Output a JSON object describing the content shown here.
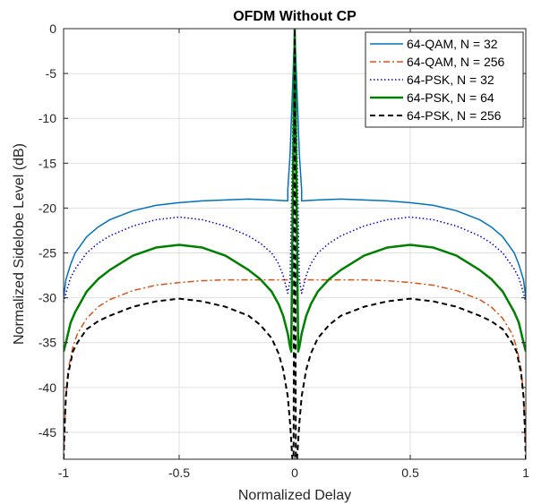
{
  "chart_data": {
    "type": "line",
    "title": "OFDM Without CP",
    "xlabel": "Normalized Delay",
    "ylabel": "Normalized Sidelobe Level (dB)",
    "xlim": [
      -1,
      1
    ],
    "ylim": [
      -48,
      0
    ],
    "xticks": [
      -1,
      -0.5,
      0,
      0.5,
      1
    ],
    "xtick_labels": [
      "-1",
      "-0.5",
      "0",
      "0.5",
      "1"
    ],
    "yticks": [
      0,
      -5,
      -10,
      -15,
      -20,
      -25,
      -30,
      -35,
      -40,
      -45
    ],
    "ytick_labels": [
      "0",
      "-5",
      "-10",
      "-15",
      "-20",
      "-25",
      "-30",
      "-35",
      "-40",
      "-45"
    ],
    "grid": true,
    "legend_position": "top-right",
    "series": [
      {
        "name": "64-QAM, N = 32",
        "color": "#0072BD",
        "style": "solid",
        "x": [
          -1,
          -0.99,
          -0.97,
          -0.95,
          -0.9,
          -0.85,
          -0.8,
          -0.7,
          -0.6,
          -0.5,
          -0.4,
          -0.3,
          -0.2,
          -0.1,
          -0.03,
          -0.03,
          -0.02,
          -0.01,
          0,
          0.01,
          0.02,
          0.03,
          0.03,
          0.1,
          0.2,
          0.3,
          0.4,
          0.5,
          0.6,
          0.7,
          0.8,
          0.85,
          0.9,
          0.95,
          0.97,
          0.99,
          1
        ],
        "y": [
          -30.0,
          -28.0,
          -26.3,
          -25.0,
          -23.2,
          -22.1,
          -21.3,
          -20.3,
          -19.7,
          -19.4,
          -19.2,
          -19.1,
          -19.0,
          -19.1,
          -19.2,
          -18.0,
          -14.0,
          -7.0,
          0,
          -7.0,
          -14.0,
          -18.0,
          -19.2,
          -19.1,
          -19.0,
          -19.1,
          -19.2,
          -19.4,
          -19.7,
          -20.3,
          -21.3,
          -22.1,
          -23.2,
          -25.0,
          -26.3,
          -28.0,
          -30.0
        ]
      },
      {
        "name": "64-QAM, N = 256",
        "color": "#D95319",
        "style": "dashdot",
        "x": [
          -1,
          -0.995,
          -0.99,
          -0.98,
          -0.96,
          -0.94,
          -0.9,
          -0.85,
          -0.8,
          -0.7,
          -0.6,
          -0.5,
          -0.4,
          -0.3,
          -0.2,
          -0.1,
          -0.01,
          0,
          0.01,
          0.1,
          0.2,
          0.3,
          0.4,
          0.5,
          0.6,
          0.7,
          0.8,
          0.85,
          0.9,
          0.94,
          0.96,
          0.98,
          0.99,
          0.995,
          1
        ],
        "y": [
          -48,
          -44.0,
          -41.0,
          -38.0,
          -35.5,
          -34.0,
          -32.3,
          -31.0,
          -30.2,
          -29.2,
          -28.6,
          -28.3,
          -28.1,
          -28.0,
          -28.0,
          -28.0,
          -28.0,
          0,
          -28.0,
          -28.0,
          -28.0,
          -28.0,
          -28.1,
          -28.3,
          -28.6,
          -29.2,
          -30.2,
          -31.0,
          -32.3,
          -34.0,
          -35.5,
          -38.0,
          -41.0,
          -44.0,
          -48
        ]
      },
      {
        "name": "64-PSK, N = 32",
        "color": "#0000CC",
        "style": "dotted",
        "x": [
          -1,
          -0.99,
          -0.97,
          -0.95,
          -0.9,
          -0.85,
          -0.8,
          -0.7,
          -0.6,
          -0.5,
          -0.4,
          -0.3,
          -0.2,
          -0.15,
          -0.1,
          -0.07,
          -0.05,
          -0.03,
          -0.02,
          -0.01,
          0,
          0.01,
          0.02,
          0.03,
          0.05,
          0.07,
          0.1,
          0.15,
          0.2,
          0.3,
          0.4,
          0.5,
          0.6,
          0.7,
          0.8,
          0.85,
          0.9,
          0.95,
          0.97,
          0.99,
          1
        ],
        "y": [
          -30.5,
          -29.5,
          -27.8,
          -26.8,
          -25.0,
          -23.9,
          -23.1,
          -22.0,
          -21.3,
          -21.0,
          -21.3,
          -22.0,
          -23.1,
          -23.9,
          -25.0,
          -26.2,
          -27.5,
          -29.5,
          -28.0,
          -14.0,
          0,
          -14.0,
          -28.0,
          -29.5,
          -27.5,
          -26.2,
          -25.0,
          -23.9,
          -23.1,
          -22.0,
          -21.3,
          -21.0,
          -21.3,
          -22.0,
          -23.1,
          -23.9,
          -25.0,
          -26.8,
          -27.8,
          -29.5,
          -30.5
        ]
      },
      {
        "name": "64-PSK, N = 64",
        "color": "#008000",
        "style": "solid-thick",
        "x": [
          -1,
          -0.99,
          -0.97,
          -0.95,
          -0.9,
          -0.85,
          -0.8,
          -0.7,
          -0.6,
          -0.5,
          -0.4,
          -0.3,
          -0.2,
          -0.15,
          -0.1,
          -0.07,
          -0.05,
          -0.03,
          -0.02,
          -0.015,
          -0.008,
          0,
          0.008,
          0.015,
          0.02,
          0.03,
          0.05,
          0.07,
          0.1,
          0.15,
          0.2,
          0.3,
          0.4,
          0.5,
          0.6,
          0.7,
          0.8,
          0.85,
          0.9,
          0.95,
          0.97,
          0.99,
          1
        ],
        "y": [
          -36.0,
          -35.0,
          -32.8,
          -31.6,
          -29.3,
          -27.9,
          -26.9,
          -25.3,
          -24.4,
          -24.1,
          -24.4,
          -25.3,
          -26.9,
          -27.9,
          -29.3,
          -30.7,
          -32.0,
          -34.0,
          -35.5,
          -36.0,
          -18.0,
          0,
          -18.0,
          -36.0,
          -35.5,
          -34.0,
          -32.0,
          -30.7,
          -29.3,
          -27.9,
          -26.9,
          -25.3,
          -24.4,
          -24.1,
          -24.4,
          -25.3,
          -26.9,
          -27.9,
          -29.3,
          -31.6,
          -32.8,
          -35.0,
          -36.0
        ]
      },
      {
        "name": "64-PSK, N = 256",
        "color": "#000000",
        "style": "dashed",
        "x": [
          -1,
          -0.995,
          -0.99,
          -0.98,
          -0.96,
          -0.94,
          -0.9,
          -0.85,
          -0.8,
          -0.7,
          -0.6,
          -0.5,
          -0.4,
          -0.3,
          -0.2,
          -0.15,
          -0.1,
          -0.07,
          -0.05,
          -0.03,
          -0.02,
          -0.01,
          -0.005,
          0,
          0.005,
          0.01,
          0.02,
          0.03,
          0.05,
          0.07,
          0.1,
          0.15,
          0.2,
          0.3,
          0.4,
          0.5,
          0.6,
          0.7,
          0.8,
          0.85,
          0.9,
          0.94,
          0.96,
          0.98,
          0.99,
          0.995,
          1
        ],
        "y": [
          -48,
          -44.0,
          -41.0,
          -38.5,
          -36.0,
          -35.0,
          -33.5,
          -32.6,
          -32.0,
          -31.0,
          -30.4,
          -30.1,
          -30.4,
          -31.0,
          -32.0,
          -33.0,
          -34.5,
          -36.2,
          -38.0,
          -41.0,
          -44.0,
          -48,
          -48,
          0,
          -48,
          -48,
          -44.0,
          -41.0,
          -38.0,
          -36.2,
          -34.5,
          -33.0,
          -32.0,
          -31.0,
          -30.4,
          -30.1,
          -30.4,
          -31.0,
          -32.0,
          -32.6,
          -33.5,
          -35.0,
          -36.0,
          -38.5,
          -41.0,
          -44.0,
          -48
        ]
      }
    ]
  }
}
